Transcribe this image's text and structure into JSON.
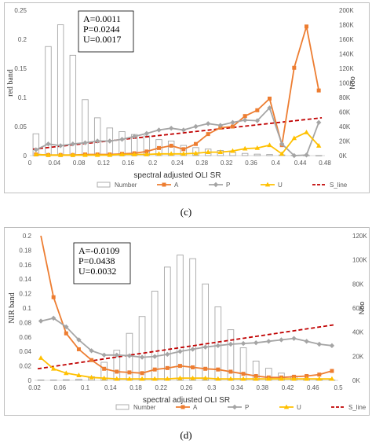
{
  "colors": {
    "number": "#a6a6a6",
    "A": "#ed7d31",
    "P": "#a5a5a5",
    "U": "#ffc000",
    "S_line": "#c00000",
    "axis_text": "#595959",
    "grid": "#d9d9d9"
  },
  "legend_labels": {
    "number": "Number",
    "A": "A",
    "P": "P",
    "U": "U",
    "S_line": "S_line"
  },
  "chart_data": [
    {
      "panel_label": "(c)",
      "type": "bar",
      "xlabel": "spectral adjusted OLI SR",
      "ylabel": "red band",
      "y2label": "Noo",
      "xlim": [
        0,
        0.48
      ],
      "ylim": [
        0,
        0.25
      ],
      "y2lim": [
        0,
        200000
      ],
      "x_ticks": [
        "0",
        "0.04",
        "0.08",
        "0.12",
        "0.16",
        "0.2",
        "0.24",
        "0.28",
        "0.32",
        "0.36",
        "0.4",
        "0.44",
        "0.48"
      ],
      "y_ticks": [
        "0",
        "0.05",
        "0.1",
        "0.15",
        "0.2",
        "0.25"
      ],
      "y2_ticks": [
        "0K",
        "20K",
        "40K",
        "60K",
        "80K",
        "100K",
        "120K",
        "140K",
        "160K",
        "180K",
        "200K"
      ],
      "stats": [
        "A=0.0011",
        "P=0.0244",
        "U=0.0017"
      ],
      "bars": {
        "name": "Number",
        "x": [
          0.01,
          0.03,
          0.05,
          0.07,
          0.09,
          0.11,
          0.13,
          0.15,
          0.17,
          0.19,
          0.21,
          0.23,
          0.25,
          0.27,
          0.29,
          0.31,
          0.33,
          0.35,
          0.37,
          0.39,
          0.41,
          0.43,
          0.45,
          0.47
        ],
        "values": [
          30000,
          150000,
          180000,
          138000,
          77000,
          52000,
          38000,
          33000,
          29000,
          27000,
          22000,
          20000,
          14000,
          11000,
          9000,
          7000,
          5000,
          3000,
          2000,
          1500,
          900,
          500,
          200,
          100
        ]
      },
      "series": [
        {
          "name": "A",
          "x": [
            0.01,
            0.03,
            0.05,
            0.07,
            0.09,
            0.11,
            0.13,
            0.15,
            0.17,
            0.19,
            0.21,
            0.23,
            0.25,
            0.27,
            0.29,
            0.31,
            0.33,
            0.35,
            0.37,
            0.39,
            0.41,
            0.43,
            0.45,
            0.47
          ],
          "values": [
            0.002,
            0.001,
            0.001,
            0.001,
            0.002,
            0.002,
            0.002,
            0.003,
            0.004,
            0.007,
            0.013,
            0.017,
            0.011,
            0.02,
            0.037,
            0.048,
            0.05,
            0.068,
            0.078,
            0.098,
            0.018,
            0.151,
            0.222,
            0.112
          ]
        },
        {
          "name": "P",
          "x": [
            0.01,
            0.03,
            0.05,
            0.07,
            0.09,
            0.11,
            0.13,
            0.15,
            0.17,
            0.19,
            0.21,
            0.23,
            0.25,
            0.27,
            0.29,
            0.31,
            0.33,
            0.35,
            0.37,
            0.39,
            0.41,
            0.43,
            0.45,
            0.47
          ],
          "values": [
            0.01,
            0.02,
            0.017,
            0.02,
            0.022,
            0.025,
            0.025,
            0.028,
            0.033,
            0.038,
            0.044,
            0.047,
            0.044,
            0.05,
            0.055,
            0.052,
            0.057,
            0.061,
            0.06,
            0.082,
            0.02,
            0.0,
            0.001,
            0.057
          ]
        },
        {
          "name": "U",
          "x": [
            0.01,
            0.03,
            0.05,
            0.07,
            0.09,
            0.11,
            0.13,
            0.15,
            0.17,
            0.19,
            0.21,
            0.23,
            0.25,
            0.27,
            0.29,
            0.31,
            0.33,
            0.35,
            0.37,
            0.39,
            0.41,
            0.43,
            0.45,
            0.47
          ],
          "values": [
            0.002,
            0.001,
            0.001,
            0.001,
            0.001,
            0.001,
            0.001,
            0.002,
            0.002,
            0.002,
            0.003,
            0.003,
            0.003,
            0.004,
            0.006,
            0.006,
            0.008,
            0.012,
            0.013,
            0.018,
            0.003,
            0.03,
            0.04,
            0.017
          ]
        }
      ],
      "s_line": {
        "name": "S_line",
        "x": [
          0.005,
          0.475
        ],
        "values": [
          0.011,
          0.065
        ]
      }
    },
    {
      "panel_label": "(d)",
      "type": "bar",
      "xlabel": "spectral adjusted OLI SR",
      "ylabel": "NIR band",
      "y2label": "Noo",
      "xlim": [
        0.02,
        0.5
      ],
      "ylim": [
        0,
        0.2
      ],
      "y2lim": [
        0,
        120000
      ],
      "x_ticks": [
        "0.02",
        "0.06",
        "0.1",
        "0.14",
        "0.18",
        "0.22",
        "0.26",
        "0.3",
        "0.34",
        "0.38",
        "0.42",
        "0.46",
        "0.5"
      ],
      "y_ticks": [
        "0",
        "0.02",
        "0.04",
        "0.06",
        "0.08",
        "0.1",
        "0.12",
        "0.14",
        "0.16",
        "0.18",
        "0.2"
      ],
      "y2_ticks": [
        "0K",
        "20K",
        "40K",
        "60K",
        "80K",
        "100K",
        "120K"
      ],
      "stats": [
        "A=-0.0109",
        "P=0.0438",
        "U=0.0032"
      ],
      "bars": {
        "name": "Number",
        "x": [
          0.03,
          0.05,
          0.07,
          0.09,
          0.11,
          0.13,
          0.15,
          0.17,
          0.19,
          0.21,
          0.23,
          0.25,
          0.27,
          0.29,
          0.31,
          0.33,
          0.35,
          0.37,
          0.39,
          0.41,
          0.43,
          0.45,
          0.47,
          0.49
        ],
        "values": [
          300,
          300,
          500,
          900,
          3000,
          15000,
          25000,
          39000,
          53000,
          74000,
          94000,
          104000,
          101000,
          80000,
          61000,
          42000,
          27000,
          16000,
          10000,
          6000,
          3500,
          1500,
          700,
          300
        ]
      },
      "series": [
        {
          "name": "A",
          "x": [
            0.03,
            0.05,
            0.07,
            0.09,
            0.11,
            0.13,
            0.15,
            0.17,
            0.19,
            0.21,
            0.23,
            0.25,
            0.27,
            0.29,
            0.31,
            0.33,
            0.35,
            0.37,
            0.39,
            0.41,
            0.43,
            0.45,
            0.47,
            0.49
          ],
          "values": [
            0.205,
            0.115,
            0.065,
            0.043,
            0.028,
            0.016,
            0.012,
            0.011,
            0.01,
            0.015,
            0.017,
            0.02,
            0.018,
            0.016,
            0.015,
            0.012,
            0.009,
            0.006,
            0.004,
            0.004,
            0.005,
            0.006,
            0.008,
            0.013
          ]
        },
        {
          "name": "P",
          "x": [
            0.03,
            0.05,
            0.07,
            0.09,
            0.11,
            0.13,
            0.15,
            0.17,
            0.19,
            0.21,
            0.23,
            0.25,
            0.27,
            0.29,
            0.31,
            0.33,
            0.35,
            0.37,
            0.39,
            0.41,
            0.43,
            0.45,
            0.47,
            0.49
          ],
          "values": [
            0.082,
            0.086,
            0.074,
            0.056,
            0.041,
            0.035,
            0.035,
            0.034,
            0.032,
            0.033,
            0.036,
            0.04,
            0.043,
            0.046,
            0.048,
            0.05,
            0.051,
            0.052,
            0.054,
            0.056,
            0.058,
            0.054,
            0.05,
            0.048
          ]
        },
        {
          "name": "U",
          "x": [
            0.03,
            0.05,
            0.07,
            0.09,
            0.11,
            0.13,
            0.15,
            0.17,
            0.19,
            0.21,
            0.23,
            0.25,
            0.27,
            0.29,
            0.31,
            0.33,
            0.35,
            0.37,
            0.39,
            0.41,
            0.43,
            0.45,
            0.47,
            0.49
          ],
          "values": [
            0.031,
            0.016,
            0.01,
            0.007,
            0.004,
            0.003,
            0.002,
            0.002,
            0.002,
            0.002,
            0.002,
            0.003,
            0.003,
            0.003,
            0.002,
            0.002,
            0.002,
            0.002,
            0.002,
            0.002,
            0.002,
            0.002,
            0.002,
            0.002
          ]
        }
      ],
      "s_line": {
        "name": "S_line",
        "x": [
          0.025,
          0.495
        ],
        "values": [
          0.016,
          0.077
        ]
      }
    }
  ]
}
